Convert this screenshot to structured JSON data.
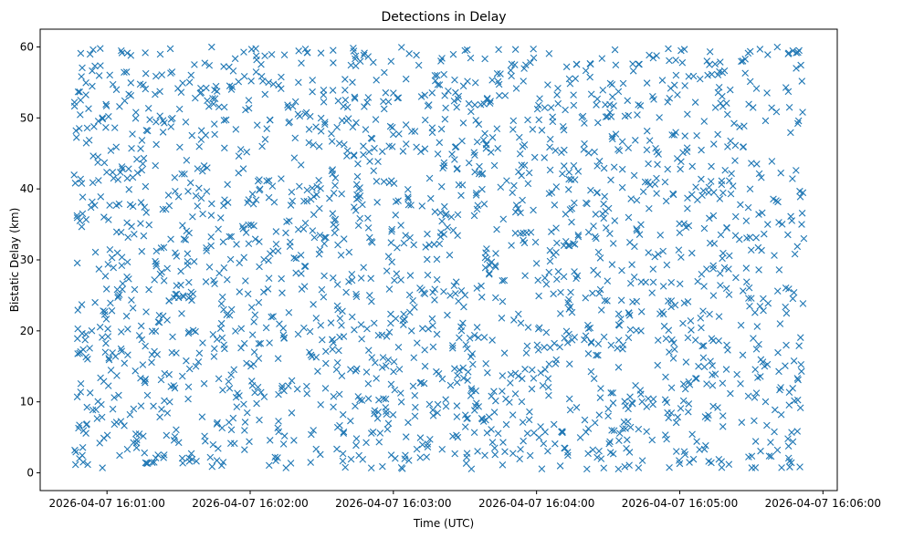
{
  "chart_data": {
    "type": "scatter",
    "title": "Detections in Delay",
    "xlabel": "Time (UTC)",
    "ylabel": "Bistatic Delay (km)",
    "x_range_seconds_after_16_00_00": [
      46,
      352
    ],
    "x_domain": [
      "2026-04-07 16:00:46",
      "2026-04-07 16:05:52"
    ],
    "ylim": [
      -2.5,
      62.5
    ],
    "x_tick_labels": [
      "2026-04-07 16:01:00",
      "2026-04-07 16:02:00",
      "2026-04-07 16:03:00",
      "2026-04-07 16:04:00",
      "2026-04-07 16:05:00",
      "2026-04-07 16:06:00"
    ],
    "x_ticks_seconds_after_16_00_00": [
      60,
      120,
      180,
      240,
      300,
      360
    ],
    "y_tick_labels": [
      "0",
      "10",
      "20",
      "30",
      "40",
      "50",
      "60"
    ],
    "y_ticks": [
      0,
      10,
      20,
      30,
      40,
      50,
      60
    ],
    "marker": "x",
    "color": "#1f77b4",
    "grid": false,
    "approx_point_count": 2100,
    "point_distribution": "roughly uniform over x from 16:00:46 to 16:05:52 and y from 0.5 to 60 km",
    "sample_points": [
      {
        "x": "2026-04-07 16:00:47",
        "y": 48.2
      },
      {
        "x": "2026-04-07 16:00:49",
        "y": 59.1
      },
      {
        "x": "2026-04-07 16:00:50",
        "y": 1.5
      },
      {
        "x": "2026-04-07 16:00:55",
        "y": 24.0
      },
      {
        "x": "2026-04-07 16:01:10",
        "y": 58.8
      },
      {
        "x": "2026-04-07 16:01:30",
        "y": 38.9
      },
      {
        "x": "2026-04-07 16:01:45",
        "y": 17.5
      },
      {
        "x": "2026-04-07 16:02:05",
        "y": 46.0
      },
      {
        "x": "2026-04-07 16:02:15",
        "y": 0.7
      },
      {
        "x": "2026-04-07 16:02:30",
        "y": 25.8
      },
      {
        "x": "2026-04-07 16:03:00",
        "y": 53.5
      },
      {
        "x": "2026-04-07 16:03:30",
        "y": 59.5
      },
      {
        "x": "2026-04-07 16:03:35",
        "y": 26.0
      },
      {
        "x": "2026-04-07 16:04:00",
        "y": 29.5
      },
      {
        "x": "2026-04-07 16:04:30",
        "y": 8.0
      },
      {
        "x": "2026-04-07 16:05:00",
        "y": 1.3
      },
      {
        "x": "2026-04-07 16:05:20",
        "y": 50.5
      },
      {
        "x": "2026-04-07 16:05:50",
        "y": 59.5
      },
      {
        "x": "2026-04-07 16:05:51",
        "y": 14.3
      },
      {
        "x": "2026-04-07 16:05:52",
        "y": 33.0
      }
    ]
  }
}
